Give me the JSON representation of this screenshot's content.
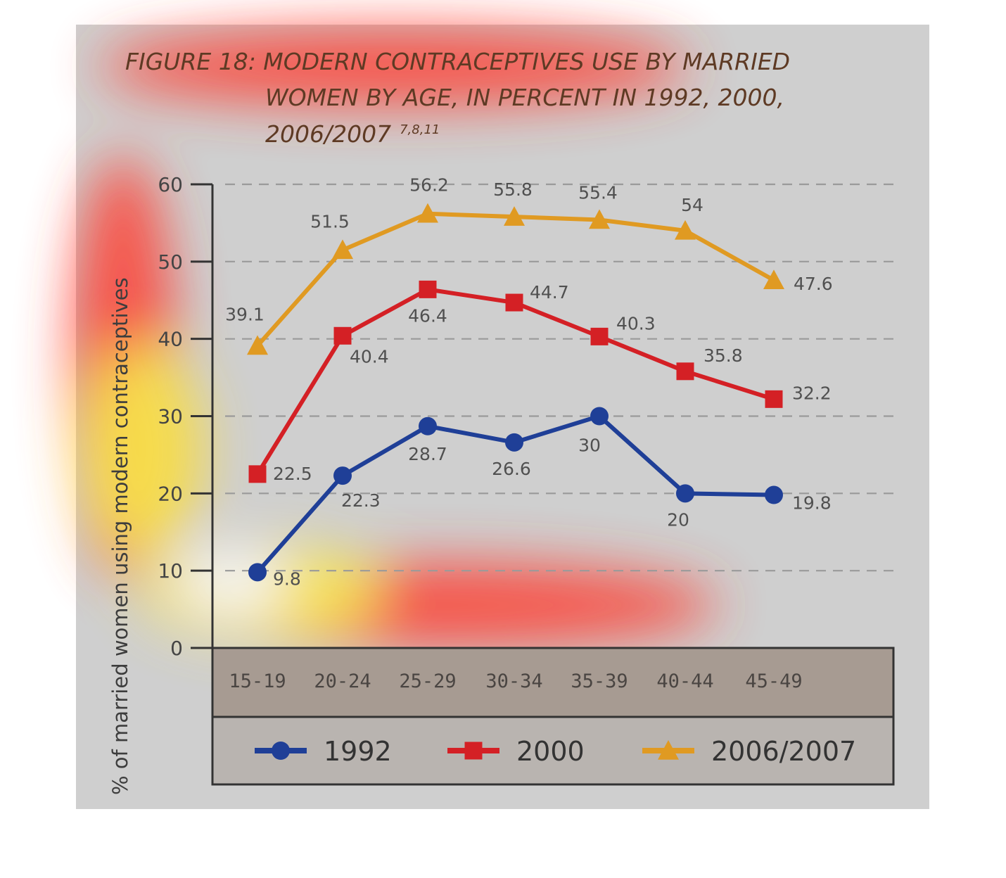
{
  "chart_data": {
    "type": "line",
    "title": {
      "line1": "FIGURE 18: MODERN CONTRACEPTIVES USE BY MARRIED",
      "line2": "WOMEN BY AGE, IN PERCENT IN 1992, 2000,",
      "line3": "2006/2007",
      "superscript": "7,8,11"
    },
    "xlabel": "",
    "ylabel": "% of married women using modern contraceptives",
    "categories": [
      "15-19",
      "20-24",
      "25-29",
      "30-34",
      "35-39",
      "40-44",
      "45-49"
    ],
    "ylim": [
      0,
      60
    ],
    "yticks": [
      0,
      10,
      20,
      30,
      40,
      50,
      60
    ],
    "grid": "horizontal dashed",
    "legend_position": "bottom",
    "series": [
      {
        "name": "1992",
        "color": "#1f3f97",
        "marker": "circle",
        "values": [
          9.8,
          22.3,
          28.7,
          26.6,
          30,
          20,
          19.8
        ],
        "labels": [
          "9.8",
          "22.3",
          "28.7",
          "26.6",
          "30",
          "20",
          "19.8"
        ]
      },
      {
        "name": "2000",
        "color": "#d42025",
        "marker": "square",
        "values": [
          22.5,
          40.4,
          46.4,
          44.7,
          40.3,
          35.8,
          32.2
        ],
        "labels": [
          "22.5",
          "40.4",
          "46.4",
          "44.7",
          "40.3",
          "35.8",
          "32.2"
        ]
      },
      {
        "name": "2006/2007",
        "color": "#e09a22",
        "marker": "triangle",
        "values": [
          39.1,
          51.5,
          56.2,
          55.8,
          55.4,
          54,
          47.6
        ],
        "labels": [
          "39.1",
          "51.5",
          "56.2",
          "55.8",
          "55.4",
          "54",
          "47.6"
        ]
      }
    ]
  }
}
